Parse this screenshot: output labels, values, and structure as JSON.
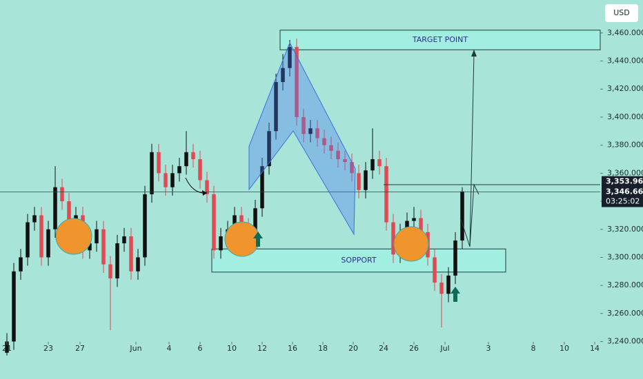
{
  "chart_data": {
    "type": "candlestick",
    "currency": "USD",
    "ylim": [
      3228,
      3483.5
    ],
    "yticks": [
      {
        "value": 3240,
        "label": "3,240.000"
      },
      {
        "value": 3260,
        "label": "3,260.000"
      },
      {
        "value": 3280,
        "label": "3,280.000"
      },
      {
        "value": 3300,
        "label": "3,300.000"
      },
      {
        "value": 3320,
        "label": "3,320.000"
      },
      {
        "value": 3340,
        "label": "3,340.000"
      },
      {
        "value": 3360,
        "label": "3,360.000"
      },
      {
        "value": 3380,
        "label": "3,380.000"
      },
      {
        "value": 3400,
        "label": "3,400.000"
      },
      {
        "value": 3420,
        "label": "3,420.000"
      },
      {
        "value": 3440,
        "label": "3,440.000"
      },
      {
        "value": 3460,
        "label": "3,460.000"
      }
    ],
    "xlim": [
      -1,
      86
    ],
    "xticks": [
      {
        "value": 0,
        "label": "21"
      },
      {
        "value": 6,
        "label": "23"
      },
      {
        "value": 10.6,
        "label": "27"
      },
      {
        "value": 18.7,
        "label": "Jun"
      },
      {
        "value": 23.5,
        "label": "4"
      },
      {
        "value": 28,
        "label": "6"
      },
      {
        "value": 32.6,
        "label": "10"
      },
      {
        "value": 37,
        "label": "12"
      },
      {
        "value": 41.4,
        "label": "16"
      },
      {
        "value": 45.8,
        "label": "18"
      },
      {
        "value": 50.2,
        "label": "20"
      },
      {
        "value": 54.6,
        "label": "24"
      },
      {
        "value": 59,
        "label": "26"
      },
      {
        "value": 63.5,
        "label": "Jul"
      },
      {
        "value": 69.8,
        "label": "3"
      },
      {
        "value": 76.3,
        "label": "8"
      },
      {
        "value": 80.8,
        "label": "10"
      },
      {
        "value": 85.2,
        "label": "14"
      }
    ],
    "up_color": "#111111",
    "down_color": "#e04a55",
    "open": [
      3232,
      3240,
      3290,
      3300,
      3325,
      3330,
      3300,
      3320,
      3350,
      3340,
      3325,
      3330,
      3305,
      3310,
      3320,
      3295,
      3285,
      3310,
      3315,
      3290,
      3300,
      3345,
      3375,
      3360,
      3350,
      3360,
      3365,
      3375,
      3370,
      3355,
      3345,
      3305,
      3315,
      3320,
      3330,
      3322,
      3318,
      3335,
      3365,
      3390,
      3425,
      3435,
      3450,
      3400,
      3388,
      3392,
      3385,
      3380,
      3376,
      3370,
      3368,
      3360,
      3348,
      3362,
      3370,
      3365,
      3325,
      3302,
      3318,
      3326,
      3328,
      3318,
      3300,
      3282,
      3274,
      3287,
      3312
    ],
    "high": [
      3246,
      3296,
      3306,
      3331,
      3336,
      3336,
      3326,
      3365,
      3356,
      3346,
      3336,
      3336,
      3316,
      3326,
      3326,
      3301,
      3316,
      3321,
      3321,
      3306,
      3351,
      3381,
      3381,
      3366,
      3366,
      3371,
      3390,
      3381,
      3376,
      3361,
      3351,
      3321,
      3326,
      3336,
      3336,
      3328,
      3341,
      3371,
      3396,
      3431,
      3445,
      3455,
      3456,
      3406,
      3398,
      3398,
      3391,
      3386,
      3382,
      3376,
      3374,
      3366,
      3368,
      3392,
      3376,
      3371,
      3331,
      3324,
      3332,
      3336,
      3334,
      3324,
      3306,
      3288,
      3293,
      3318,
      3350
    ],
    "low": [
      3230,
      3234,
      3284,
      3294,
      3319,
      3294,
      3294,
      3314,
      3334,
      3319,
      3319,
      3299,
      3299,
      3304,
      3289,
      3248,
      3279,
      3304,
      3284,
      3284,
      3294,
      3339,
      3354,
      3344,
      3344,
      3354,
      3359,
      3364,
      3349,
      3339,
      3299,
      3299,
      3309,
      3314,
      3316,
      3312,
      3312,
      3329,
      3359,
      3384,
      3419,
      3429,
      3394,
      3382,
      3382,
      3379,
      3374,
      3370,
      3364,
      3362,
      3354,
      3342,
      3342,
      3356,
      3359,
      3319,
      3296,
      3296,
      3312,
      3320,
      3312,
      3294,
      3276,
      3250,
      3268,
      3281,
      3306
    ],
    "close": [
      3240,
      3290,
      3300,
      3325,
      3330,
      3300,
      3320,
      3350,
      3340,
      3325,
      3330,
      3305,
      3310,
      3320,
      3295,
      3285,
      3310,
      3315,
      3290,
      3300,
      3345,
      3375,
      3360,
      3350,
      3360,
      3365,
      3375,
      3370,
      3355,
      3345,
      3305,
      3315,
      3320,
      3330,
      3322,
      3318,
      3335,
      3365,
      3390,
      3425,
      3435,
      3450,
      3400,
      3388,
      3392,
      3385,
      3380,
      3376,
      3370,
      3368,
      3360,
      3348,
      3362,
      3370,
      3365,
      3325,
      3302,
      3318,
      3326,
      3328,
      3318,
      3300,
      3282,
      3274,
      3287,
      3312,
      3347
    ],
    "price_markers": [
      {
        "value": 3353.965,
        "label": "3,353.965"
      },
      {
        "value": 3346.66,
        "label": "3,346.660"
      }
    ],
    "countdown": "03:25:02",
    "zones": [
      {
        "label": "TARGET POINT",
        "ylim": [
          3448,
          3462
        ],
        "xlim": [
          39.6,
          86
        ]
      },
      {
        "label": "SOPPORT",
        "ylim": [
          3289.5,
          3306
        ],
        "xlim": [
          29.7,
          72.3
        ]
      }
    ]
  }
}
